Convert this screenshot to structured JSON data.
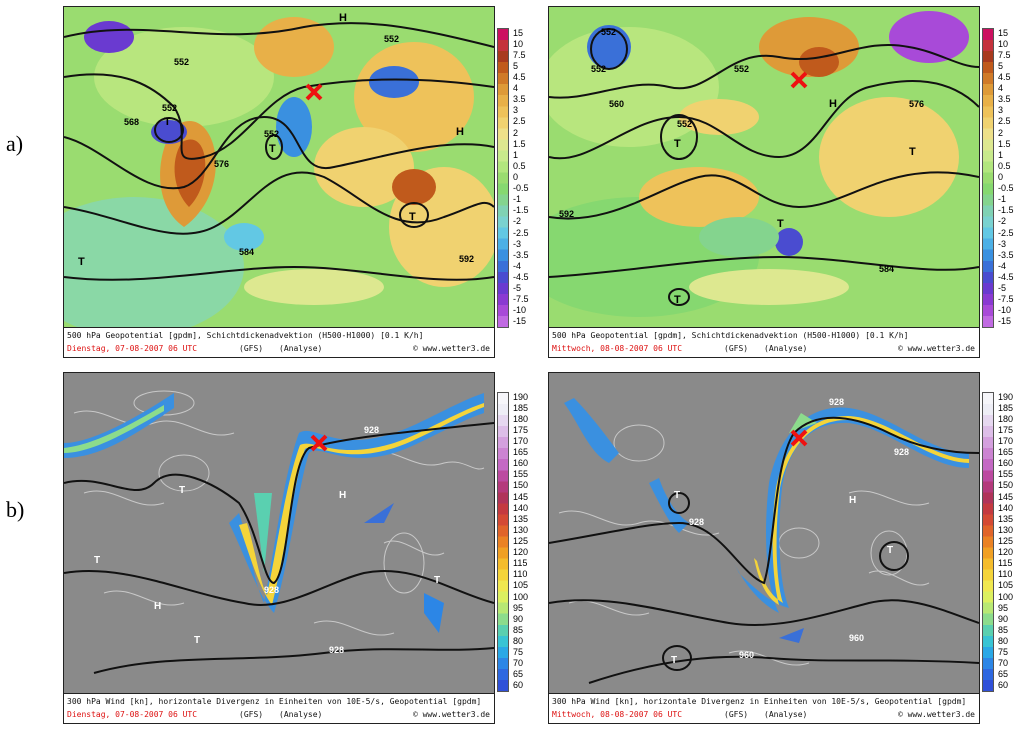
{
  "row_labels": {
    "a": "a)",
    "b": "b)"
  },
  "panels": [
    {
      "caption_line1": "500 hPa Geopotential [gpdm], Schichtdickenadvektion (H500-H1000) [0.1 K/h]",
      "date": "Dienstag, 07-08-2007   06 UTC",
      "model": "(GFS)",
      "mode": "(Analyse)",
      "site": "© www.wetter3.de"
    },
    {
      "caption_line1": "500 hPa Geopotential [gpdm], Schichtdickenadvektion (H500-H1000) [0.1 K/h]",
      "date": "Mittwoch, 08-08-2007   06 UTC",
      "model": "(GFS)",
      "mode": "(Analyse)",
      "site": "© www.wetter3.de"
    },
    {
      "caption_line1": "300 hPa Wind [kn], horizontale Divergenz in Einheiten von 10E-5/s, Geopotential [gpdm]",
      "date": "Dienstag, 07-08-2007   06 UTC",
      "model": "(GFS)",
      "mode": "(Analyse)",
      "site": "© www.wetter3.de"
    },
    {
      "caption_line1": "300 hPa Wind [kn], horizontale Divergenz in Einheiten von 10E-5/s, Geopotential [gpdm]",
      "date": "Mittwoch, 08-08-2007   06 UTC",
      "model": "(GFS)",
      "mode": "(Analyse)",
      "site": "© www.wetter3.de"
    }
  ],
  "map_labels": {
    "a_left": [
      "552",
      "552",
      "552",
      "552",
      "568",
      "576",
      "584",
      "592",
      "H",
      "H",
      "T",
      "T",
      "T",
      "T"
    ],
    "a_right": [
      "552",
      "552",
      "552",
      "552",
      "560",
      "576",
      "584",
      "592",
      "H",
      "T",
      "T",
      "T",
      "T"
    ],
    "b_left": [
      "928",
      "928",
      "928",
      "H",
      "H",
      "T",
      "T",
      "T",
      "T"
    ],
    "b_right": [
      "928",
      "928",
      "928",
      "960",
      "960",
      "H",
      "T",
      "T",
      "T"
    ]
  },
  "scale_a": [
    "15",
    "10",
    "7.5",
    "5",
    "4.5",
    "4",
    "3.5",
    "3",
    "2.5",
    "2",
    "1.5",
    "1",
    "0.5",
    "0",
    "-0.5",
    "-1",
    "-1.5",
    "-2",
    "-2.5",
    "-3",
    "-3.5",
    "-4",
    "-4.5",
    "-5",
    "-7.5",
    "-10",
    "-15"
  ],
  "scale_b": [
    "190",
    "185",
    "180",
    "175",
    "170",
    "165",
    "160",
    "155",
    "150",
    "145",
    "140",
    "135",
    "130",
    "125",
    "120",
    "115",
    "110",
    "105",
    "100",
    "95",
    "90",
    "85",
    "80",
    "75",
    "70",
    "65",
    "60"
  ],
  "colors": {
    "scale_a": [
      "#cc1060",
      "#c4323c",
      "#a83a1e",
      "#c05a1c",
      "#d07a28",
      "#de9a38",
      "#e8b048",
      "#eec25a",
      "#f0d270",
      "#eee08a",
      "#dde890",
      "#c8ea8c",
      "#b2e67e",
      "#9adc70",
      "#86d870",
      "#84d48e",
      "#80d2b4",
      "#7ad2d0",
      "#62c8e4",
      "#4cb0e6",
      "#3a90e0",
      "#3a70d8",
      "#4a4cd0",
      "#6a3ad0",
      "#8a3ad2",
      "#a84ad8",
      "#c06ae2"
    ],
    "scale_b": [
      "#f6f6fa",
      "#eeeef6",
      "#e6d8f0",
      "#ddbee8",
      "#d4a0de",
      "#cc84d2",
      "#c469c4",
      "#bc4aa0",
      "#b43a7c",
      "#b0345a",
      "#c43a40",
      "#d44a34",
      "#e0642a",
      "#ea8224",
      "#f0a024",
      "#f4bc2c",
      "#f4d43a",
      "#f0e850",
      "#dcf060",
      "#b8e874",
      "#8cdc8c",
      "#5ad0b0",
      "#38c4d4",
      "#2aa8e6",
      "#2c86e6",
      "#2e68e0",
      "#3050d8"
    ]
  }
}
